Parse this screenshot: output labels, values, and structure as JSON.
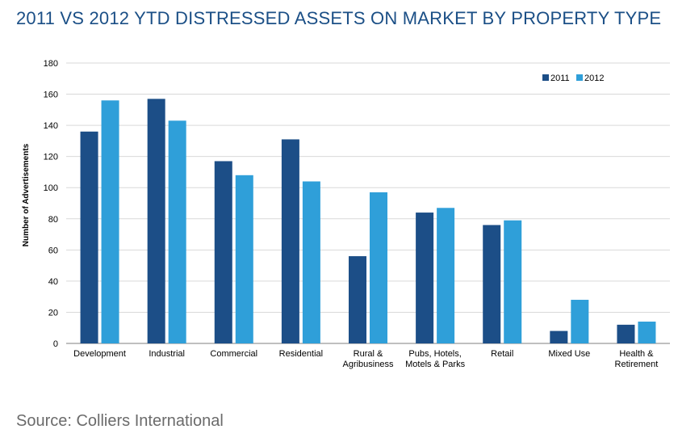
{
  "title": "2011 VS 2012 YTD DISTRESSED ASSETS ON MARKET BY PROPERTY TYPE",
  "source": "Source: Colliers International",
  "chart_data": {
    "type": "bar",
    "title": "2011 VS 2012 YTD DISTRESSED ASSETS ON MARKET BY PROPERTY TYPE",
    "xlabel": "",
    "ylabel": "Number of Advertisements",
    "ylim": [
      0,
      180
    ],
    "yticks": [
      0,
      20,
      40,
      60,
      80,
      100,
      120,
      140,
      160,
      180
    ],
    "grid": true,
    "legend_position": "top-right",
    "categories": [
      [
        "Development"
      ],
      [
        "Industrial"
      ],
      [
        "Commercial"
      ],
      [
        "Residential"
      ],
      [
        "Rural &",
        "Agribusiness"
      ],
      [
        "Pubs, Hotels,",
        "Motels & Parks"
      ],
      [
        "Retail"
      ],
      [
        "Mixed Use"
      ],
      [
        "Health &",
        "Retirement"
      ]
    ],
    "series": [
      {
        "name": "2011",
        "color": "#1c4e87",
        "values": [
          136,
          157,
          117,
          131,
          56,
          84,
          76,
          8,
          12
        ]
      },
      {
        "name": "2012",
        "color": "#2f9fd9",
        "values": [
          156,
          143,
          108,
          104,
          97,
          87,
          79,
          28,
          14
        ]
      }
    ]
  }
}
